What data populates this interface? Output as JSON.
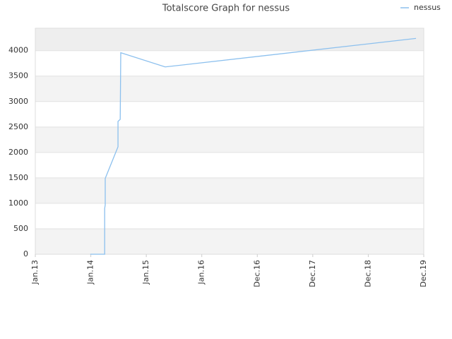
{
  "chart_data": {
    "type": "line",
    "title": "Totalscore Graph for nessus",
    "x_ticks_note_free": null,
    "xlim": [
      0,
      7
    ],
    "xticks": [
      {
        "value": 0,
        "label": "Jan.13"
      },
      {
        "value": 1,
        "label": "Jan.14"
      },
      {
        "value": 2,
        "label": "Jan.15"
      },
      {
        "value": 3,
        "label": "Jan.16"
      },
      {
        "value": 4,
        "label": "Dec.16"
      },
      {
        "value": 5,
        "label": "Dec.17"
      },
      {
        "value": 6,
        "label": "Dec.18"
      },
      {
        "value": 7,
        "label": "Dec.19"
      }
    ],
    "ylim": [
      0,
      4440
    ],
    "yticks": [
      0,
      500,
      1000,
      1500,
      2000,
      2500,
      3000,
      3500,
      4000
    ],
    "grid": true,
    "legend": "top-right",
    "series": [
      {
        "name": "nessus",
        "color": "#8cc0ee",
        "x": [
          0.99,
          1.25,
          1.25,
          1.26,
          1.26,
          1.49,
          1.49,
          1.53,
          1.54,
          2.34,
          6.86
        ],
        "values": [
          0,
          0,
          900,
          970,
          1490,
          2110,
          2610,
          2650,
          3960,
          3680,
          4240
        ]
      }
    ]
  }
}
